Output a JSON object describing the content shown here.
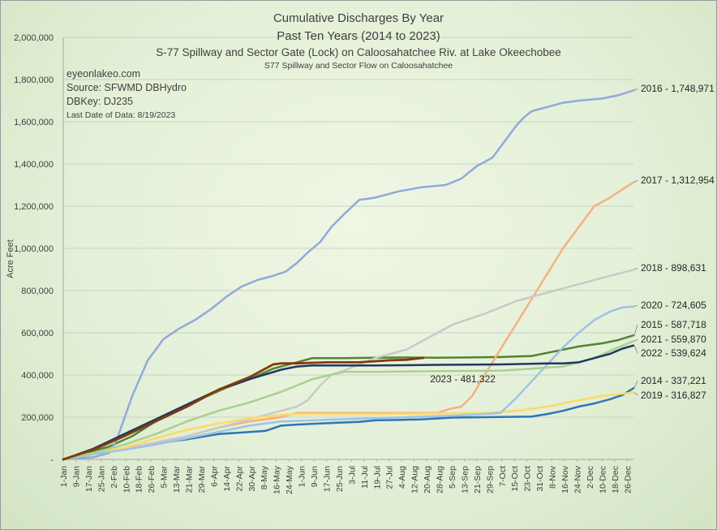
{
  "chart_data": {
    "type": "line",
    "title_lines": [
      "Cumulative Discharges By Year",
      "Past Ten Years (2014 to 2023)",
      "S-77 Spillway and Sector Gate (Lock) on Caloosahatchee Riv. at Lake Okeechobee"
    ],
    "subtitle": "S77 Spillway and Sector Flow on Caloosahatchee",
    "info": [
      "eyeonlakeo.com",
      "Source: SFWMD DBHydro",
      "DBKey: DJ235",
      "Last Date of Data: 8/19/2023"
    ],
    "ylabel": "Acre Feet",
    "xlabel": "",
    "ylim": [
      0,
      2000000
    ],
    "yticks": [
      "-",
      "200,000",
      "400,000",
      "600,000",
      "800,000",
      "1,000,000",
      "1,200,000",
      "1,400,000",
      "1,600,000",
      "1,800,000",
      "2,000,000"
    ],
    "x_unit": "day of year",
    "x_domain": [
      1,
      365
    ],
    "xticks": [
      "1-Jan",
      "9-Jan",
      "17-Jan",
      "25-Jan",
      "2-Feb",
      "10-Feb",
      "18-Feb",
      "26-Feb",
      "5-Mar",
      "13-Mar",
      "21-Mar",
      "29-Mar",
      "6-Apr",
      "14-Apr",
      "22-Apr",
      "30-Apr",
      "8-May",
      "16-May",
      "24-May",
      "1-Jun",
      "9-Jun",
      "17-Jun",
      "25-Jun",
      "3-Jul",
      "11-Jul",
      "19-Jul",
      "27-Jul",
      "4-Aug",
      "12-Aug",
      "20-Aug",
      "28-Aug",
      "5-Sep",
      "13-Sep",
      "21-Sep",
      "29-Sep",
      "7-Oct",
      "15-Oct",
      "23-Oct",
      "31-Oct",
      "8-Nov",
      "16-Nov",
      "24-Nov",
      "2-Dec",
      "10-Dec",
      "18-Dec",
      "26-Dec"
    ],
    "grid": true,
    "series": [
      {
        "name": "2014",
        "label": "2014 - 337,221",
        "color": "#2e75b6",
        "width": 2.5,
        "x": [
          1,
          20,
          40,
          60,
          80,
          100,
          120,
          130,
          140,
          150,
          165,
          180,
          190,
          200,
          215,
          230,
          250,
          270,
          300,
          310,
          320,
          330,
          340,
          350,
          358,
          365
        ],
        "y": [
          0,
          25000,
          50000,
          75000,
          95000,
          120000,
          130000,
          135000,
          160000,
          165000,
          170000,
          175000,
          178000,
          185000,
          187000,
          190000,
          198000,
          200000,
          203000,
          215000,
          230000,
          250000,
          265000,
          285000,
          305000,
          337221
        ]
      },
      {
        "name": "2015",
        "label": "2015 - 587,718",
        "color": "#548235",
        "width": 2.5,
        "x": [
          1,
          15,
          30,
          45,
          60,
          75,
          90,
          105,
          120,
          135,
          150,
          160,
          180,
          200,
          220,
          240,
          260,
          280,
          300,
          320,
          330,
          345,
          355,
          365
        ],
        "y": [
          0,
          30000,
          60000,
          110000,
          180000,
          240000,
          290000,
          340000,
          380000,
          430000,
          460000,
          480000,
          480000,
          482000,
          483000,
          482000,
          483000,
          485000,
          490000,
          520000,
          535000,
          550000,
          565000,
          587718
        ]
      },
      {
        "name": "2016",
        "label": "2016 - 1,748,971",
        "color": "#8faadc",
        "width": 2.5,
        "x": [
          1,
          10,
          20,
          30,
          35,
          45,
          55,
          65,
          75,
          85,
          95,
          105,
          115,
          125,
          135,
          143,
          150,
          157,
          165,
          172,
          180,
          190,
          200,
          215,
          230,
          245,
          255,
          265,
          275,
          285,
          290,
          295,
          300,
          310,
          320,
          330,
          345,
          355,
          365
        ],
        "y": [
          0,
          5000,
          10000,
          30000,
          90000,
          300000,
          470000,
          570000,
          620000,
          660000,
          710000,
          770000,
          820000,
          850000,
          870000,
          890000,
          930000,
          980000,
          1030000,
          1100000,
          1160000,
          1230000,
          1240000,
          1270000,
          1290000,
          1300000,
          1330000,
          1390000,
          1430000,
          1530000,
          1580000,
          1620000,
          1650000,
          1670000,
          1690000,
          1700000,
          1710000,
          1725000,
          1748971
        ]
      },
      {
        "name": "2017",
        "label": "2017 - 1,312,954",
        "color": "#f4b183",
        "width": 2.5,
        "x": [
          1,
          20,
          40,
          60,
          80,
          100,
          120,
          140,
          150,
          160,
          200,
          240,
          248,
          255,
          262,
          270,
          280,
          290,
          300,
          310,
          320,
          330,
          340,
          350,
          358,
          365
        ],
        "y": [
          0,
          30000,
          50000,
          80000,
          110000,
          150000,
          180000,
          200000,
          220000,
          220000,
          220000,
          220000,
          240000,
          250000,
          300000,
          400000,
          520000,
          640000,
          760000,
          880000,
          1000000,
          1100000,
          1200000,
          1240000,
          1280000,
          1312954
        ]
      },
      {
        "name": "2018",
        "label": "2018 - 898,631",
        "color": "#c9c9c9",
        "width": 2.5,
        "x": [
          1,
          20,
          40,
          60,
          80,
          100,
          120,
          140,
          150,
          157,
          165,
          172,
          180,
          190,
          200,
          210,
          220,
          230,
          240,
          250,
          270,
          290,
          310,
          330,
          350,
          365
        ],
        "y": [
          0,
          30000,
          50000,
          80000,
          110000,
          150000,
          190000,
          230000,
          250000,
          280000,
          350000,
          400000,
          420000,
          450000,
          480000,
          500000,
          520000,
          560000,
          600000,
          640000,
          690000,
          750000,
          790000,
          830000,
          870000,
          898631
        ]
      },
      {
        "name": "2019",
        "label": "2019 - 316,827",
        "color": "#ffd966",
        "width": 2.5,
        "x": [
          1,
          20,
          40,
          60,
          80,
          100,
          120,
          140,
          150,
          200,
          250,
          270,
          290,
          310,
          330,
          345,
          365
        ],
        "y": [
          0,
          30000,
          55000,
          100000,
          140000,
          170000,
          195000,
          210000,
          215000,
          215000,
          218000,
          220000,
          230000,
          250000,
          280000,
          300000,
          316827
        ]
      },
      {
        "name": "2020",
        "label": "2020 - 724,605",
        "color": "#9dc3e6",
        "width": 2.5,
        "x": [
          1,
          20,
          40,
          60,
          80,
          100,
          120,
          140,
          160,
          200,
          240,
          260,
          280,
          290,
          300,
          310,
          320,
          330,
          340,
          350,
          358,
          365
        ],
        "y": [
          0,
          25000,
          45000,
          70000,
          100000,
          130000,
          160000,
          180000,
          185000,
          195000,
          205000,
          210000,
          220000,
          290000,
          370000,
          450000,
          530000,
          600000,
          660000,
          700000,
          720000,
          724605
        ]
      },
      {
        "name": "2021",
        "label": "2021 - 559,870",
        "color": "#a9d18e",
        "width": 2.5,
        "x": [
          1,
          20,
          40,
          60,
          80,
          100,
          120,
          140,
          160,
          180,
          200,
          240,
          280,
          300,
          320,
          340,
          355,
          365
        ],
        "y": [
          0,
          30000,
          70000,
          120000,
          180000,
          230000,
          270000,
          320000,
          380000,
          415000,
          415000,
          418000,
          420000,
          430000,
          440000,
          480000,
          530000,
          559870
        ]
      },
      {
        "name": "2022",
        "label": "2022 - 539,624",
        "color": "#1f3864",
        "width": 2.5,
        "x": [
          1,
          20,
          40,
          60,
          80,
          100,
          120,
          140,
          150,
          160,
          200,
          240,
          280,
          310,
          320,
          330,
          340,
          350,
          358,
          365
        ],
        "y": [
          0,
          50000,
          120000,
          190000,
          260000,
          330000,
          380000,
          425000,
          440000,
          445000,
          445000,
          448000,
          450000,
          455000,
          455000,
          460000,
          480000,
          500000,
          525000,
          539624
        ]
      },
      {
        "name": "2023",
        "label": "2023 - 481,322",
        "color": "#843c0c",
        "width": 2.8,
        "x": [
          1,
          20,
          40,
          60,
          80,
          100,
          120,
          135,
          140,
          150,
          170,
          190,
          210,
          220,
          231
        ],
        "y": [
          0,
          45000,
          110000,
          180000,
          250000,
          330000,
          390000,
          450000,
          455000,
          455000,
          460000,
          460000,
          470000,
          472000,
          481322
        ]
      }
    ]
  }
}
